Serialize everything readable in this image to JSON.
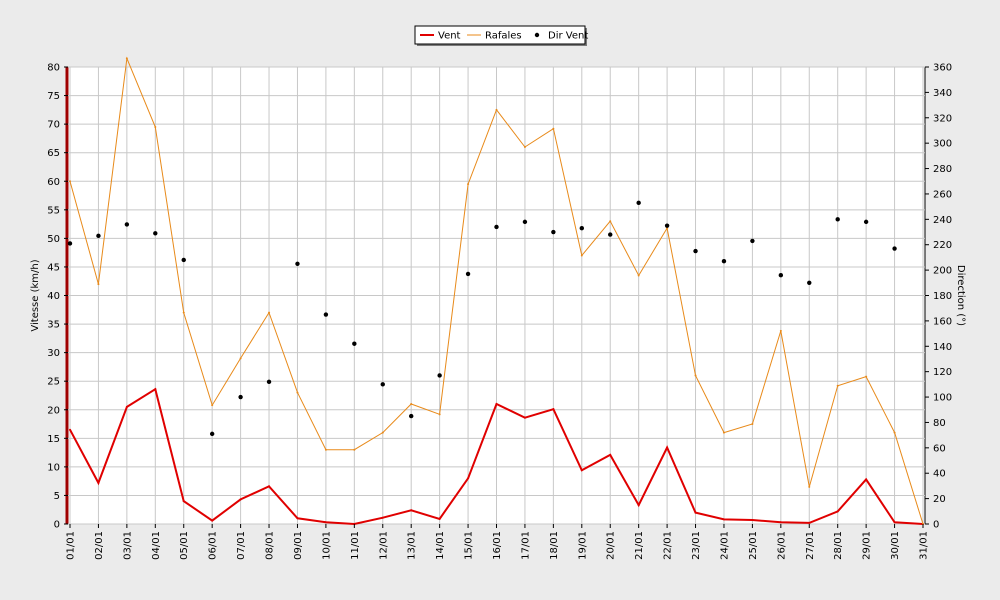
{
  "chart_data": {
    "type": "line",
    "title": "",
    "xlabel": "",
    "ylabel": "Vitesse (km/h)",
    "y2label": "Direction (°)",
    "categories": [
      "01/01",
      "02/01",
      "03/01",
      "04/01",
      "05/01",
      "06/01",
      "07/01",
      "08/01",
      "09/01",
      "10/01",
      "11/01",
      "12/01",
      "13/01",
      "14/01",
      "15/01",
      "16/01",
      "17/01",
      "18/01",
      "19/01",
      "20/01",
      "21/01",
      "22/01",
      "23/01",
      "24/01",
      "25/01",
      "26/01",
      "27/01",
      "28/01",
      "29/01",
      "30/01",
      "31/01"
    ],
    "ylim": [
      0,
      80
    ],
    "yticks": [
      0,
      5,
      10,
      15,
      20,
      25,
      30,
      35,
      40,
      45,
      50,
      55,
      60,
      65,
      70,
      75,
      80
    ],
    "y2lim": [
      0,
      360
    ],
    "y2ticks": [
      0,
      20,
      40,
      60,
      80,
      100,
      120,
      140,
      160,
      180,
      200,
      220,
      240,
      260,
      280,
      300,
      320,
      340,
      360
    ],
    "grid": true,
    "legend_position": "top-center",
    "series": [
      {
        "name": "Vent",
        "kind": "line",
        "axis": "left",
        "color": "#e00000",
        "values": [
          16.5,
          7.2,
          20.5,
          23.6,
          4.0,
          0.6,
          4.3,
          6.6,
          1.0,
          0.3,
          0.0,
          1.1,
          2.4,
          0.9,
          8.0,
          21.0,
          18.6,
          20.1,
          9.4,
          12.1,
          3.3,
          13.4,
          2.0,
          0.8,
          0.7,
          0.3,
          0.2,
          2.2,
          7.8,
          0.3,
          0.0
        ]
      },
      {
        "name": "Rafales",
        "kind": "line",
        "axis": "left",
        "color": "#e88a1a",
        "values": [
          60.0,
          42.0,
          81.5,
          69.5,
          37.0,
          20.8,
          29.0,
          37.0,
          23.0,
          13.0,
          13.0,
          16.0,
          21.0,
          19.2,
          59.5,
          72.5,
          66.0,
          69.2,
          47.0,
          53.0,
          43.5,
          51.8,
          26.0,
          16.0,
          17.5,
          33.8,
          6.5,
          24.2,
          25.8,
          16.0,
          0.0
        ]
      },
      {
        "name": "Dir Vent",
        "kind": "scatter",
        "axis": "right",
        "color": "#000000",
        "values": [
          221,
          227,
          236,
          229,
          208,
          71,
          100,
          112,
          205,
          165,
          142,
          110,
          85,
          117,
          197,
          234,
          238,
          230,
          233,
          228,
          253,
          235,
          215,
          207,
          223,
          196,
          190,
          240,
          238,
          217,
          null
        ]
      }
    ]
  }
}
